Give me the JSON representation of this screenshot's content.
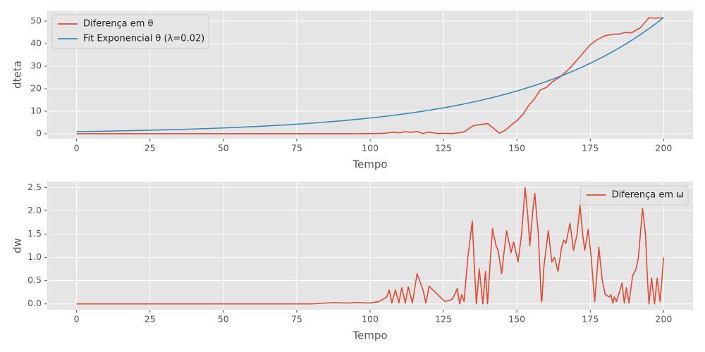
{
  "chart_data": [
    {
      "type": "line",
      "xlabel": "Tempo",
      "ylabel": "dteta",
      "legend": "upper left",
      "grid": true,
      "xlim": [
        -10,
        210
      ],
      "ylim": [
        -2.2,
        54.7
      ],
      "xticks": [
        0,
        25,
        50,
        75,
        100,
        125,
        150,
        175,
        200
      ],
      "yticks": [
        0,
        10,
        20,
        30,
        40,
        50
      ],
      "x": [
        0,
        10,
        20,
        30,
        40,
        50,
        60,
        70,
        80,
        90,
        100,
        105,
        108,
        110,
        112,
        114,
        116,
        118,
        120,
        123,
        125,
        128,
        130,
        132,
        135,
        137,
        140,
        142,
        144,
        146,
        148,
        150,
        152,
        154,
        156,
        158,
        160,
        162,
        165,
        168,
        170,
        172,
        175,
        177,
        180,
        183,
        185,
        187,
        189,
        192,
        195,
        197,
        200
      ],
      "series": [
        {
          "name": "Diferença em θ",
          "color": "#e24a33",
          "values": [
            0,
            0,
            0,
            0,
            0,
            0,
            0,
            0,
            0,
            0,
            0.05,
            0.2,
            0.7,
            0.4,
            0.9,
            0.6,
            1.0,
            0.1,
            0.7,
            0.1,
            0.2,
            0.1,
            0.4,
            0.8,
            3.5,
            4.0,
            4.5,
            2.5,
            0.2,
            1.5,
            3.8,
            5.8,
            8.5,
            12.5,
            15.5,
            19.5,
            20.5,
            23,
            25.5,
            29,
            32,
            35,
            39.5,
            41.5,
            43.5,
            44.2,
            44.3,
            45,
            44.8,
            47,
            51.5,
            51.3,
            51.5
          ]
        },
        {
          "name": "Fit Exponencial θ (λ=0.02)",
          "color": "#348abd",
          "values": [
            0.95,
            1.15,
            1.41,
            1.72,
            2.1,
            2.57,
            3.14,
            3.83,
            4.68,
            5.72,
            6.98,
            7.72,
            8.19,
            8.53,
            8.88,
            9.24,
            9.62,
            10.01,
            10.42,
            11.06,
            11.51,
            12.22,
            12.72,
            13.24,
            14.06,
            14.64,
            15.54,
            16.17,
            16.83,
            17.52,
            18.24,
            18.98,
            19.76,
            20.56,
            21.4,
            22.27,
            23.18,
            24.13,
            25.62,
            27.21,
            28.32,
            29.47,
            31.29,
            32.57,
            34.59,
            36.72,
            38.22,
            39.78,
            41.41,
            43.97,
            46.69,
            48.59,
            51.6
          ]
        }
      ]
    },
    {
      "type": "line",
      "xlabel": "Tempo",
      "ylabel": "dw",
      "legend": "upper right",
      "grid": true,
      "xlim": [
        -10,
        210
      ],
      "ylim": [
        -0.125,
        2.625
      ],
      "xticks": [
        0,
        25,
        50,
        75,
        100,
        125,
        150,
        175,
        200
      ],
      "yticks": [
        {
          "value": 0,
          "label": "0.0"
        },
        0.5,
        {
          "value": 1,
          "label": "1.0"
        },
        1.5,
        {
          "value": 2,
          "label": "2.0"
        },
        2.5
      ],
      "x": [
        0,
        20,
        40,
        60,
        80,
        85,
        88,
        92,
        96,
        100,
        103,
        105.7,
        106.5,
        107.4,
        108.6,
        109.8,
        110.8,
        112,
        113,
        114.4,
        116,
        118,
        119,
        120.1,
        123,
        125.5,
        128,
        129.7,
        130.5,
        131.2,
        132,
        133.3,
        134.8,
        135.5,
        136.2,
        137.2,
        138.4,
        139.3,
        140,
        141,
        141.7,
        142.9,
        143.6,
        144.8,
        145.8,
        146.5,
        148,
        148.9,
        150.4,
        151.6,
        152.8,
        153.7,
        154.4,
        155.4,
        156.1,
        157.3,
        158.3,
        158.5,
        159.2,
        160.7,
        161.9,
        162.8,
        164,
        165.2,
        165.9,
        166.7,
        168.1,
        169.3,
        170.5,
        171.5,
        172.4,
        173.1,
        174.3,
        175.3,
        176.5,
        177.2,
        177.9,
        179.1,
        180.1,
        181.5,
        182,
        182.7,
        183.2,
        183.9,
        184.9,
        185.8,
        186.6,
        187.3,
        188.2,
        189.4,
        190.6,
        191.4,
        192.8,
        193.8,
        194.5,
        195,
        195.9,
        196.9,
        197.8,
        198.8,
        200
      ],
      "series": [
        {
          "name": "Diferença em ω",
          "color": "#e24a33",
          "values": [
            0,
            0,
            0,
            0,
            0,
            0.02,
            0.03,
            0.02,
            0.03,
            0.02,
            0.05,
            0.15,
            0.3,
            0.02,
            0.3,
            0.02,
            0.35,
            0.02,
            0.37,
            0.02,
            0.65,
            0.3,
            0.02,
            0.38,
            0.2,
            0.05,
            0.1,
            0.33,
            0,
            0.2,
            0.05,
            1.0,
            1.78,
            0.8,
            0,
            0.75,
            0,
            0.7,
            0,
            1.0,
            1.62,
            1.25,
            1.15,
            0.65,
            1.2,
            1.57,
            1.1,
            1.33,
            0.9,
            1.5,
            2.5,
            1.9,
            1.25,
            2.0,
            2.37,
            1.5,
            0.1,
            0.05,
            0.8,
            1.57,
            0.9,
            1.0,
            0.7,
            1.2,
            1.37,
            1.3,
            1.73,
            1.15,
            1.5,
            2.12,
            1.5,
            1.15,
            1.6,
            1.0,
            0.05,
            0.6,
            1.22,
            0.5,
            0.2,
            0.15,
            0.2,
            0.02,
            0.15,
            0.05,
            0.25,
            0.45,
            0.02,
            0.35,
            0.02,
            0.6,
            0.75,
            1.0,
            2.05,
            1.5,
            0.5,
            0,
            0.55,
            0,
            0.55,
            0.05,
            1.0
          ]
        }
      ]
    }
  ]
}
